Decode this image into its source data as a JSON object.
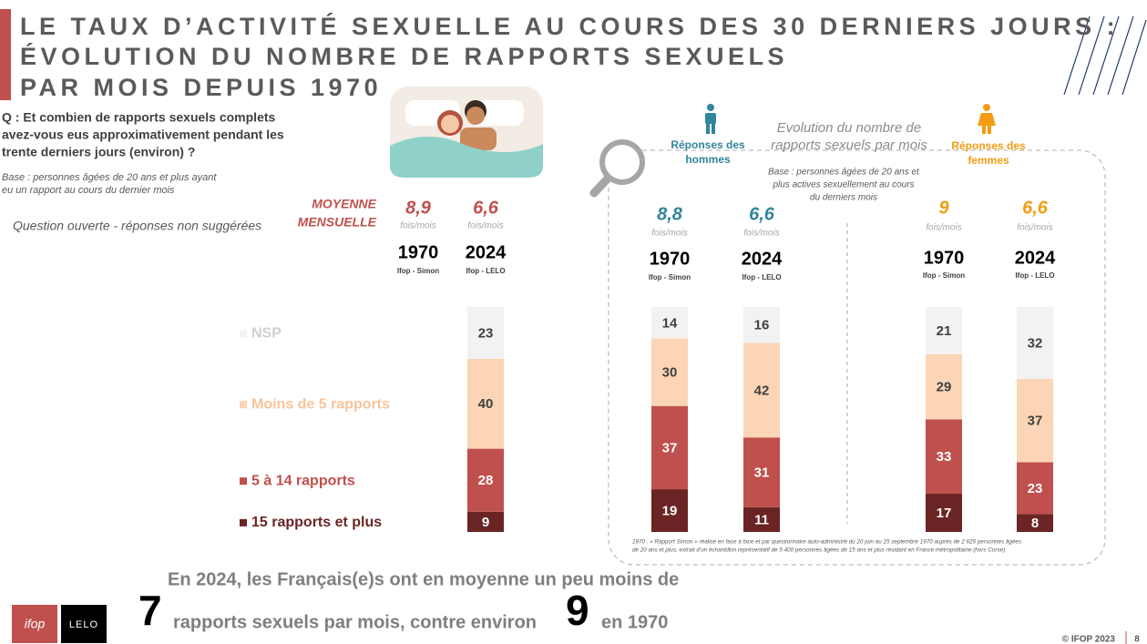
{
  "title": [
    "LE TAUX D’ACTIVITÉ SEXUELLE AU COURS DES 30 DERNIERS JOURS :",
    "ÉVOLUTION DU NOMBRE DE RAPPORTS SEXUELS",
    "PAR MOIS DEPUIS 1970"
  ],
  "question": [
    "Q : Et combien de rapports sexuels complets",
    "avez-vous eus approximativement pendant les",
    "trente derniers jours (environ) ?"
  ],
  "base": [
    "Base : personnes âgées de 20 ans et plus ayant",
    "eu un rapport au cours du dernier mois"
  ],
  "note": "Question ouverte - réponses non suggérées",
  "mean_heading": [
    "MOYENNE",
    "MENSUELLE"
  ],
  "panel": {
    "title": [
      "Evolution du nombre de",
      "rapports sexuels par mois"
    ],
    "base": [
      "Base : personnes âgées de 20 ans et",
      "plus actives sexuellement au cours",
      "du derniers mois"
    ],
    "footnote": [
      "1970 : « Rapport Simon » réalisé en face à face et par questionnaire auto-administré du 20 juin au 25 septembre 1970 auprès de 2 625 personnes âgées",
      "de 20 ans et plus, extrait d’un échantillon représentatif de 5 400 personnes âgées de 15 ans et plus résidant en France métropolitaine (hors Corse)"
    ]
  },
  "chart_data": [
    {
      "type": "bar",
      "stacked": true,
      "legend": true,
      "mean_color": "#c0504d",
      "categories": [
        "1970",
        "2024"
      ],
      "sources": [
        "Ifop - Simon",
        "Ifop - LELO"
      ],
      "means": [
        8.9,
        6.6
      ],
      "mean_labels": [
        "8,9",
        "6,6"
      ],
      "mean_unit": "fois/mois",
      "series": [
        {
          "name": "15 rapports et plus",
          "color": "#6b2424",
          "values": [
            null,
            9
          ]
        },
        {
          "name": "5 à 14 rapports",
          "color": "#c0504d",
          "values": [
            null,
            28
          ]
        },
        {
          "name": "Moins de 5 rapports",
          "color": "#fbd5b5",
          "values": [
            null,
            40
          ]
        },
        {
          "name": "NSP",
          "color": "#f2f2f2",
          "values": [
            null,
            23
          ]
        }
      ]
    },
    {
      "type": "bar",
      "stacked": true,
      "legend": false,
      "mean_color": "#31859c",
      "title": [
        "Réponses des",
        "hommes"
      ],
      "categories": [
        "1970",
        "2024"
      ],
      "sources": [
        "Ifop - Simon",
        "Ifop - LELO"
      ],
      "means": [
        8.8,
        6.6
      ],
      "mean_labels": [
        "8,8",
        "6,6"
      ],
      "mean_unit": "fois/mois",
      "series": [
        {
          "name": "15 rapports et plus",
          "color": "#6b2424",
          "values": [
            19,
            11
          ]
        },
        {
          "name": "5 à 14 rapports",
          "color": "#c0504d",
          "values": [
            37,
            31
          ]
        },
        {
          "name": "Moins de 5 rapports",
          "color": "#fbd5b5",
          "values": [
            30,
            42
          ]
        },
        {
          "name": "NSP",
          "color": "#f2f2f2",
          "values": [
            14,
            16
          ]
        }
      ]
    },
    {
      "type": "bar",
      "stacked": true,
      "legend": false,
      "mean_color": "#f39c12",
      "title": [
        "Réponses des",
        "femmes"
      ],
      "categories": [
        "1970",
        "2024"
      ],
      "sources": [
        "Ifop - Simon",
        "Ifop - LELO"
      ],
      "means": [
        9,
        6.6
      ],
      "mean_labels": [
        "9",
        "6,6"
      ],
      "mean_unit": "fois/mois",
      "series": [
        {
          "name": "15 rapports et plus",
          "color": "#6b2424",
          "values": [
            17,
            8
          ]
        },
        {
          "name": "5 à 14 rapports",
          "color": "#c0504d",
          "values": [
            33,
            23
          ]
        },
        {
          "name": "Moins de 5 rapports",
          "color": "#fbd5b5",
          "values": [
            29,
            37
          ]
        },
        {
          "name": "NSP",
          "color": "#f2f2f2",
          "values": [
            21,
            32
          ]
        }
      ]
    }
  ],
  "footer": {
    "line1": "En 2024, les Français(e)s ont en moyenne un peu moins de",
    "big1": "7",
    "line2": "rapports sexuels par mois, contre environ",
    "big2": "9",
    "line3": "en 1970"
  },
  "logos": [
    "ifop",
    "LELO"
  ],
  "copyright": "© IFOP 2023",
  "page": "8"
}
